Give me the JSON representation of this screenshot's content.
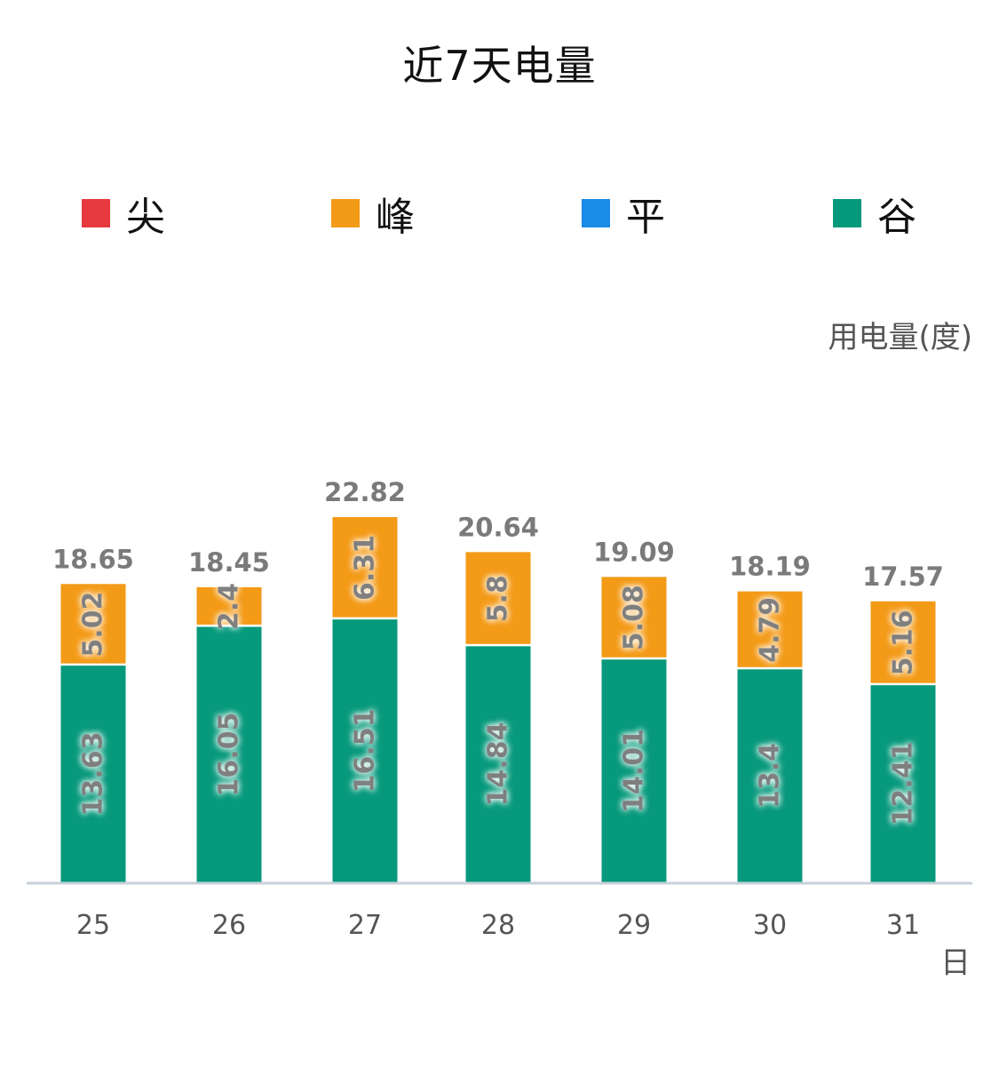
{
  "chart_data": {
    "type": "bar",
    "stacked": true,
    "title": "近7天电量",
    "ylabel": "用电量(度)",
    "xlabel": "日",
    "categories": [
      "25",
      "26",
      "27",
      "28",
      "29",
      "30",
      "31"
    ],
    "series": [
      {
        "name": "尖",
        "color": "#e63a3f",
        "values": [
          0,
          0,
          0,
          0,
          0,
          0,
          0
        ]
      },
      {
        "name": "峰",
        "color": "#f39a17",
        "values": [
          5.02,
          2.4,
          6.31,
          5.8,
          5.08,
          4.79,
          5.16
        ]
      },
      {
        "name": "平",
        "color": "#1a8be6",
        "values": [
          0,
          0,
          0,
          0,
          0,
          0,
          0
        ]
      },
      {
        "name": "谷",
        "color": "#07997c",
        "values": [
          13.63,
          16.05,
          16.51,
          14.84,
          14.01,
          13.4,
          12.41
        ]
      }
    ],
    "totals": [
      18.65,
      18.45,
      22.82,
      20.64,
      19.09,
      18.19,
      17.57
    ],
    "segment_labels": {
      "峰": [
        "5.02",
        "2.4",
        "6.31",
        "5.8",
        "5.08",
        "4.79",
        "5.16"
      ],
      "谷": [
        "13.63",
        "16.05",
        "16.51",
        "14.84",
        "14.01",
        "13.4",
        "12.41"
      ]
    },
    "total_labels": [
      "18.65",
      "18.45",
      "22.82",
      "20.64",
      "19.09",
      "18.19",
      "17.57"
    ],
    "ylim": [
      0,
      22.82
    ],
    "grid": false,
    "legend_position": "top"
  }
}
